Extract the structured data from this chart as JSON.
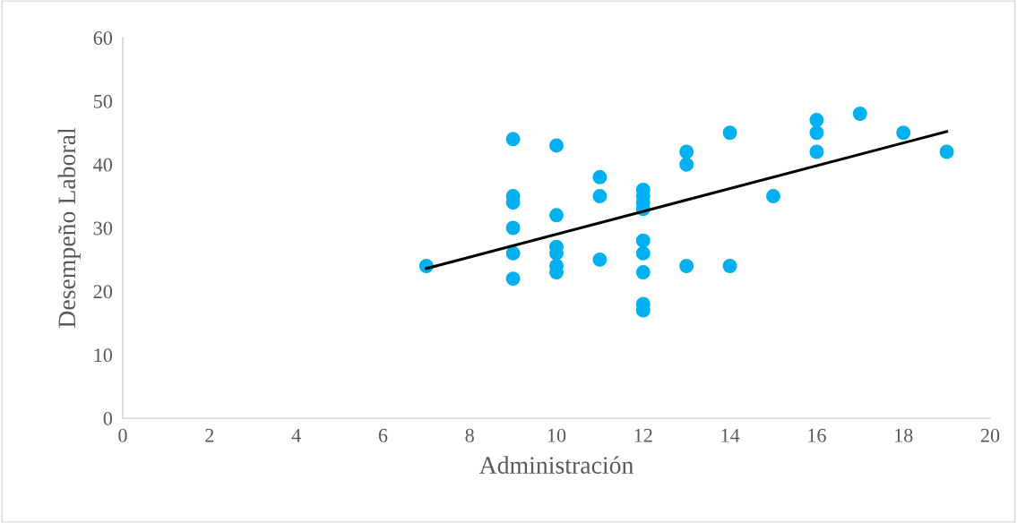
{
  "chart_data": {
    "type": "scatter",
    "xlabel": "Administración",
    "ylabel": "Desempeño Laboral",
    "xlim": [
      0,
      20
    ],
    "ylim": [
      0,
      60
    ],
    "xticks": [
      0,
      2,
      4,
      6,
      8,
      10,
      12,
      14,
      16,
      18,
      20
    ],
    "yticks": [
      0,
      10,
      20,
      30,
      40,
      50,
      60
    ],
    "grid": false,
    "legend": false,
    "marker": "circle",
    "series": [
      {
        "color": "#00b0f0",
        "x": [
          7,
          9,
          9,
          9,
          9,
          9,
          9,
          10,
          10,
          10,
          10,
          10,
          10,
          11,
          11,
          11,
          12,
          12,
          12,
          12,
          12,
          12,
          12,
          12,
          12,
          13,
          13,
          13,
          14,
          14,
          15,
          16,
          16,
          16,
          17,
          18,
          19
        ],
        "values": [
          24,
          44,
          35,
          34,
          30,
          26,
          22,
          43,
          32,
          27,
          26,
          24,
          23,
          38,
          35,
          25,
          36,
          35,
          34,
          33,
          28,
          26,
          23,
          18,
          17,
          42,
          40,
          24,
          45,
          24,
          35,
          47,
          45,
          42,
          48,
          45,
          42
        ]
      },
      {
        "color": "#000000",
        "type": "line",
        "marker": "none",
        "line_style": "solid",
        "x": [
          7,
          19
        ],
        "values": [
          23.6,
          45.2
        ]
      }
    ]
  }
}
